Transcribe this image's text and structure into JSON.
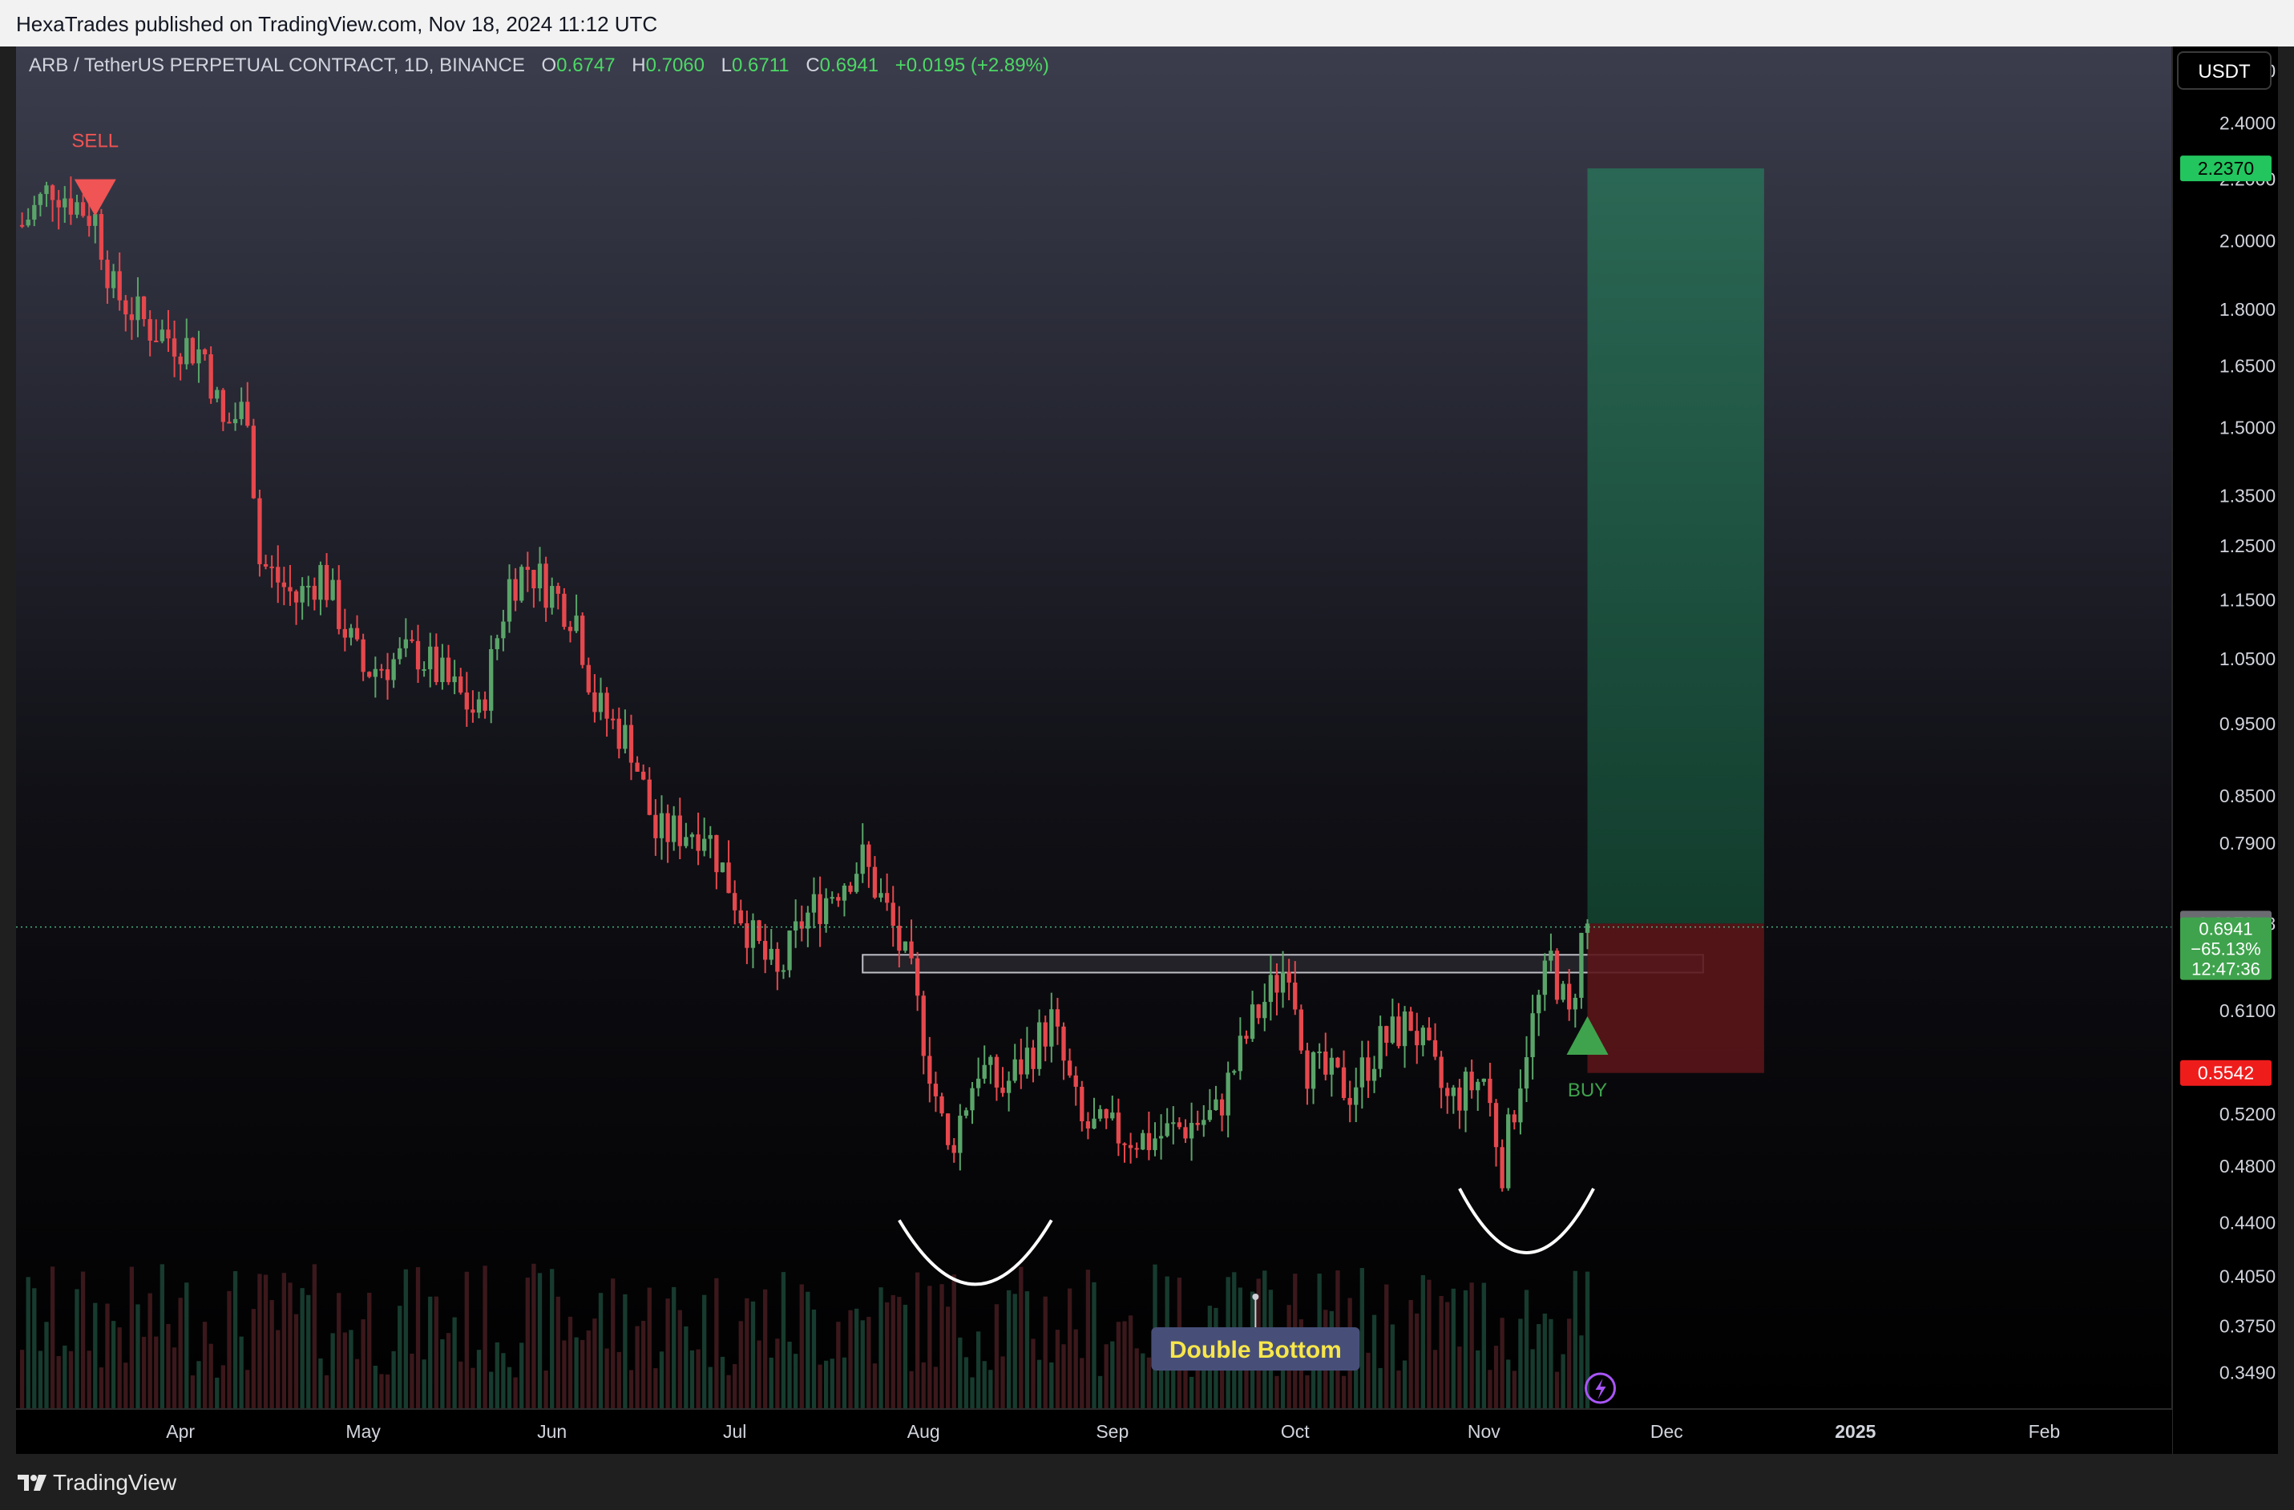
{
  "header": {
    "published_line": "HexaTrades published on TradingView.com, Nov 18, 2024 11:12 UTC"
  },
  "legend": {
    "symbol": "ARB / TetherUS PERPETUAL CONTRACT, 1D, BINANCE",
    "open_label": "O",
    "open": "0.6747",
    "high_label": "H",
    "high": "0.7060",
    "low_label": "L",
    "low": "0.6711",
    "close_label": "C",
    "close": "0.6941",
    "change": "+0.0195 (+2.89%)"
  },
  "toolbar": {
    "currency_label": "USDT"
  },
  "footer": {
    "brand": "TradingView",
    "logo_icon": "tradingview-logo-icon"
  },
  "colors": {
    "up": "#5aa469",
    "down": "#e5484d",
    "target_zone": "#1e5a46",
    "stop_zone": "#5a1518",
    "target_tag": "#22c55e",
    "stop_tag": "#ef1c1c"
  },
  "chart_data": {
    "type": "candlestick",
    "y_scale": "log",
    "ylim": [
      0.33,
      2.7
    ],
    "x_range": [
      "2024-03-05",
      "2025-02-22"
    ],
    "price_ticks": [
      "2.6000",
      "2.4000",
      "2.2000",
      "2.0000",
      "1.8000",
      "1.6500",
      "1.5000",
      "1.3500",
      "1.2500",
      "1.1500",
      "1.0500",
      "0.9500",
      "0.8500",
      "0.7900",
      "0.6978",
      "0.6100",
      "0.5200",
      "0.4800",
      "0.4400",
      "0.4050",
      "0.3750",
      "0.3490"
    ],
    "month_ticks": [
      {
        "label": "Apr",
        "date": "2024-04-01"
      },
      {
        "label": "May",
        "date": "2024-05-01"
      },
      {
        "label": "Jun",
        "date": "2024-06-01"
      },
      {
        "label": "Jul",
        "date": "2024-07-01"
      },
      {
        "label": "Aug",
        "date": "2024-08-01"
      },
      {
        "label": "Sep",
        "date": "2024-09-01"
      },
      {
        "label": "Oct",
        "date": "2024-10-01"
      },
      {
        "label": "Nov",
        "date": "2024-11-01"
      },
      {
        "label": "Dec",
        "date": "2024-12-01"
      },
      {
        "label": "2025",
        "date": "2025-01-01"
      },
      {
        "label": "Feb",
        "date": "2025-02-01"
      }
    ],
    "price_path": [
      {
        "date": "2024-03-06",
        "price": 2.05
      },
      {
        "date": "2024-03-11",
        "price": 2.18
      },
      {
        "date": "2024-03-18",
        "price": 2.07
      },
      {
        "date": "2024-03-21",
        "price": 1.85
      },
      {
        "date": "2024-03-27",
        "price": 1.75
      },
      {
        "date": "2024-04-05",
        "price": 1.68
      },
      {
        "date": "2024-04-08",
        "price": 1.5
      },
      {
        "date": "2024-04-12",
        "price": 1.55
      },
      {
        "date": "2024-04-14",
        "price": 1.22
      },
      {
        "date": "2024-04-20",
        "price": 1.15
      },
      {
        "date": "2024-04-24",
        "price": 1.2
      },
      {
        "date": "2024-05-01",
        "price": 1.03
      },
      {
        "date": "2024-05-10",
        "price": 1.06
      },
      {
        "date": "2024-05-20",
        "price": 0.96
      },
      {
        "date": "2024-05-25",
        "price": 1.18
      },
      {
        "date": "2024-05-28",
        "price": 1.21
      },
      {
        "date": "2024-06-05",
        "price": 1.12
      },
      {
        "date": "2024-06-08",
        "price": 0.98
      },
      {
        "date": "2024-06-14",
        "price": 0.92
      },
      {
        "date": "2024-06-18",
        "price": 0.8
      },
      {
        "date": "2024-06-26",
        "price": 0.81
      },
      {
        "date": "2024-07-04",
        "price": 0.68
      },
      {
        "date": "2024-07-08",
        "price": 0.64
      },
      {
        "date": "2024-07-12",
        "price": 0.7
      },
      {
        "date": "2024-07-22",
        "price": 0.77
      },
      {
        "date": "2024-07-26",
        "price": 0.71
      },
      {
        "date": "2024-07-30",
        "price": 0.64
      },
      {
        "date": "2024-08-05",
        "price": 0.49
      },
      {
        "date": "2024-08-10",
        "price": 0.56
      },
      {
        "date": "2024-08-14",
        "price": 0.54
      },
      {
        "date": "2024-08-22",
        "price": 0.6
      },
      {
        "date": "2024-08-27",
        "price": 0.51
      },
      {
        "date": "2024-09-07",
        "price": 0.5
      },
      {
        "date": "2024-09-18",
        "price": 0.52
      },
      {
        "date": "2024-09-24",
        "price": 0.6
      },
      {
        "date": "2024-09-30",
        "price": 0.66
      },
      {
        "date": "2024-10-03",
        "price": 0.56
      },
      {
        "date": "2024-10-10",
        "price": 0.54
      },
      {
        "date": "2024-10-15",
        "price": 0.58
      },
      {
        "date": "2024-10-20",
        "price": 0.6
      },
      {
        "date": "2024-10-26",
        "price": 0.53
      },
      {
        "date": "2024-11-01",
        "price": 0.55
      },
      {
        "date": "2024-11-04",
        "price": 0.48
      },
      {
        "date": "2024-11-08",
        "price": 0.58
      },
      {
        "date": "2024-11-12",
        "price": 0.66
      },
      {
        "date": "2024-11-15",
        "price": 0.6
      },
      {
        "date": "2024-11-17",
        "price": 0.68
      },
      {
        "date": "2024-11-18",
        "price": 0.6941
      }
    ],
    "current_price": {
      "value": "0.6941",
      "change_pct": "−65.13%",
      "countdown": "12:47:36"
    },
    "highlighted_level": "0.6978",
    "long_position": {
      "start_date": "2024-11-18",
      "end_date": "2024-12-17",
      "entry": 0.6978,
      "target": 2.237,
      "target_label": "2.2370",
      "stop": 0.5542,
      "stop_label": "0.5542"
    },
    "resistance_zone": {
      "start_date": "2024-07-22",
      "end_date": "2024-12-07",
      "low": 0.647,
      "high": 0.665
    },
    "signals": [
      {
        "type": "sell",
        "label": "SELL",
        "date": "2024-03-18",
        "price": 2.2
      },
      {
        "type": "buy",
        "label": "BUY",
        "date": "2024-11-18",
        "price": 0.57
      }
    ],
    "pattern": {
      "label": "Double Bottom",
      "curves": [
        {
          "start_date": "2024-07-28",
          "end_date": "2024-08-22",
          "low": 0.4
        },
        {
          "start_date": "2024-10-28",
          "end_date": "2024-11-19",
          "low": 0.42
        }
      ]
    }
  }
}
